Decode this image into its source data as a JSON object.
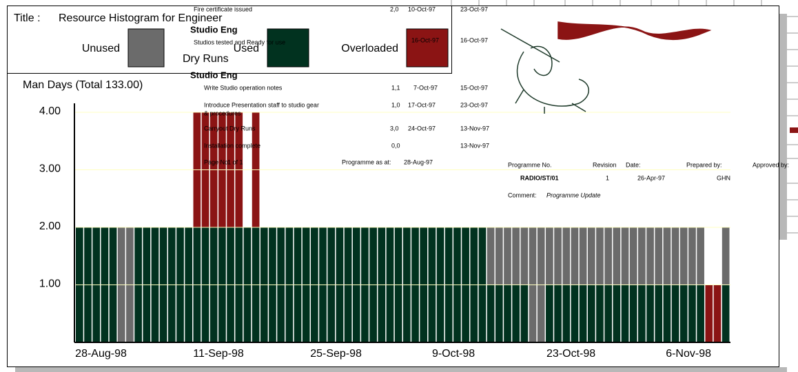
{
  "chart_data": {
    "type": "bar",
    "stacked": true,
    "title_prefix": "Title :",
    "title": "Resource Histogram for Engineer",
    "subtitle": "Dry Runs",
    "ylabel": "Man Days  (Total 133.00)",
    "categories": [
      null,
      null,
      null,
      "28-Aug-98",
      null,
      null,
      null,
      null,
      null,
      null,
      null,
      null,
      null,
      null,
      null,
      null,
      null,
      "11-Sep-98",
      null,
      null,
      null,
      null,
      null,
      null,
      null,
      null,
      null,
      null,
      null,
      null,
      null,
      "25-Sep-98",
      null,
      null,
      null,
      null,
      null,
      null,
      null,
      null,
      null,
      null,
      null,
      null,
      null,
      "9-Oct-98",
      null,
      null,
      null,
      null,
      null,
      null,
      null,
      null,
      null,
      null,
      null,
      null,
      null,
      "23-Oct-98",
      null,
      null,
      null,
      null,
      null,
      null,
      null,
      null,
      null,
      null,
      null,
      null,
      null,
      "6-Nov-98",
      null,
      null,
      null,
      null
    ],
    "series": [
      {
        "name": "Used",
        "color": "#01321f",
        "values": [
          2,
          2,
          2,
          2,
          2,
          0,
          0,
          2,
          2,
          2,
          2,
          2,
          2,
          2,
          2,
          2,
          2,
          2,
          2,
          2,
          2,
          2,
          2,
          2,
          2,
          2,
          2,
          2,
          2,
          2,
          2,
          2,
          2,
          2,
          2,
          2,
          2,
          2,
          2,
          2,
          2,
          2,
          2,
          2,
          2,
          2,
          2,
          2,
          2,
          1,
          1,
          1,
          1,
          1,
          0,
          0,
          1,
          1,
          1,
          1,
          1,
          1,
          1,
          1,
          1,
          1,
          1,
          1,
          1,
          1,
          1,
          1,
          1,
          1,
          1,
          0,
          0,
          1
        ]
      },
      {
        "name": "Unused",
        "color": "#6b6b6b",
        "values": [
          0,
          0,
          0,
          0,
          0,
          2,
          2,
          0,
          0,
          0,
          0,
          0,
          0,
          0,
          0,
          0,
          0,
          0,
          0,
          0,
          0,
          0,
          0,
          0,
          0,
          0,
          0,
          0,
          0,
          0,
          0,
          0,
          0,
          0,
          0,
          0,
          0,
          0,
          0,
          0,
          0,
          0,
          0,
          0,
          0,
          0,
          0,
          0,
          0,
          1,
          1,
          1,
          1,
          1,
          2,
          2,
          1,
          1,
          1,
          1,
          1,
          1,
          1,
          1,
          1,
          1,
          1,
          1,
          1,
          1,
          1,
          1,
          1,
          1,
          1,
          0,
          0,
          1
        ]
      },
      {
        "name": "Overloaded",
        "color": "#8b1414",
        "values": [
          0,
          0,
          0,
          0,
          0,
          0,
          0,
          0,
          0,
          0,
          0,
          0,
          0,
          0,
          2,
          2,
          2,
          2,
          2,
          2,
          0,
          2,
          0,
          0,
          0,
          0,
          0,
          0,
          0,
          0,
          0,
          0,
          0,
          0,
          0,
          0,
          0,
          0,
          0,
          0,
          0,
          0,
          0,
          0,
          0,
          0,
          0,
          0,
          0,
          0,
          0,
          0,
          0,
          0,
          0,
          0,
          0,
          0,
          0,
          0,
          0,
          0,
          0,
          0,
          0,
          0,
          0,
          0,
          0,
          0,
          0,
          0,
          0,
          0,
          0,
          1,
          1,
          0
        ]
      }
    ],
    "ylim": [
      0,
      4
    ],
    "yticks": [
      {
        "value": 1,
        "label": "1.00"
      },
      {
        "value": 2,
        "label": "2.00"
      },
      {
        "value": 3,
        "label": "3.00"
      },
      {
        "value": 4,
        "label": "4.00"
      }
    ],
    "grid": true
  },
  "overlay": {
    "rows": [
      {
        "task": "Fire certificate issued",
        "duration": "2,0",
        "start": "10-Oct-97",
        "finish": "23-Oct-97"
      },
      {
        "group": "Studio Eng"
      },
      {
        "task": "Studios tested and Ready for use",
        "milestone": "16-Oct-97",
        "finish": "16-Oct-97"
      },
      {
        "group": "Studio Eng"
      },
      {
        "task": "Write Studio operation notes",
        "duration": "1,1",
        "start": "7-Oct-97",
        "finish": "15-Oct-97"
      },
      {
        "task": "Introduce Presentation staff to studio gear",
        "task2": "& procedures",
        "duration": "1,0",
        "start": "17-Oct-97",
        "finish": "23-Oct-97"
      },
      {
        "task": "Carryout Dry Runs",
        "duration": "3,0",
        "start": "24-Oct-97",
        "finish": "13-Nov-97"
      },
      {
        "task": "Installation complete",
        "duration": "0,0",
        "finish": "13-Nov-97"
      }
    ],
    "page_label": "Page No:",
    "page": "1 of 1",
    "asat_label": "Programme as at:",
    "asat": "28-Aug-97",
    "footer_headers": [
      "Programme No.",
      "Revision",
      "Date:",
      "Prepared by:",
      "Approved by:"
    ],
    "footer_values": [
      "RADIO/ST/01",
      "1",
      "26-Apr-97",
      "GHN"
    ],
    "comment_label": "Comment:",
    "comment": "Programme Update"
  }
}
